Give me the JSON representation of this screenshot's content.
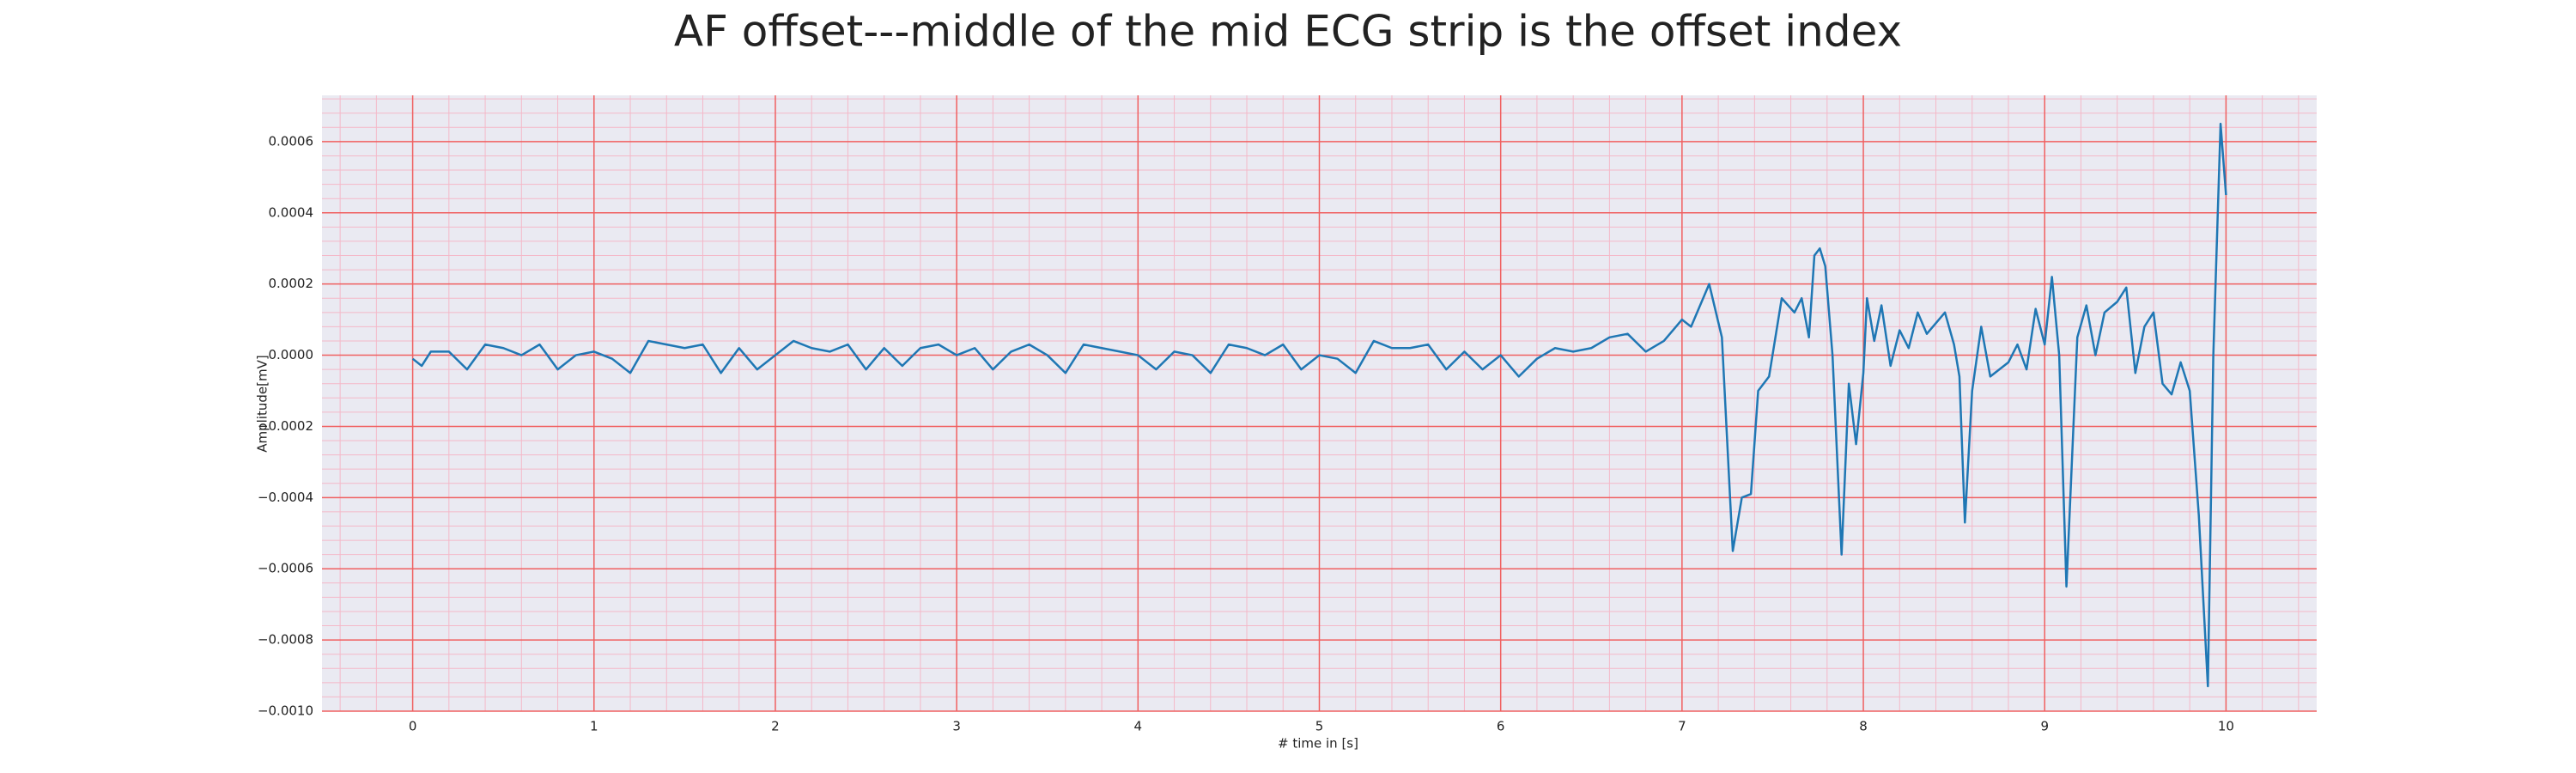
{
  "chart_data": {
    "type": "line",
    "title": "AF offset---middle of the mid ECG strip is the offset index",
    "xlabel": "# time in [s]",
    "ylabel": "Amplitude[mV]",
    "color": "#1f77b4",
    "grid": true,
    "minor_grid": true,
    "xlim": [
      -0.5,
      10.5
    ],
    "ylim": [
      -0.001,
      0.00073
    ],
    "xticks": [
      0,
      1,
      2,
      3,
      4,
      5,
      6,
      7,
      8,
      9,
      10
    ],
    "yticks": [
      {
        "value": -0.001,
        "label": "−0.0010"
      },
      {
        "value": -0.0008,
        "label": "−0.0008"
      },
      {
        "value": -0.0006,
        "label": "−0.0006"
      },
      {
        "value": -0.0004,
        "label": "−0.0004"
      },
      {
        "value": -0.0002,
        "label": "−0.0002"
      },
      {
        "value": 0,
        "label": "0.0000"
      },
      {
        "value": 0.0002,
        "label": "0.0002"
      },
      {
        "value": 0.0004,
        "label": "0.0004"
      },
      {
        "value": 0.0006,
        "label": "0.0006"
      }
    ],
    "x": [
      0,
      0.05,
      0.1,
      0.2,
      0.3,
      0.4,
      0.5,
      0.6,
      0.7,
      0.8,
      0.9,
      1.0,
      1.1,
      1.2,
      1.3,
      1.4,
      1.5,
      1.6,
      1.7,
      1.8,
      1.9,
      2.0,
      2.1,
      2.2,
      2.3,
      2.4,
      2.5,
      2.6,
      2.7,
      2.8,
      2.9,
      3.0,
      3.1,
      3.2,
      3.3,
      3.4,
      3.5,
      3.6,
      3.7,
      3.8,
      3.9,
      4.0,
      4.1,
      4.2,
      4.3,
      4.4,
      4.5,
      4.6,
      4.7,
      4.8,
      4.9,
      5.0,
      5.1,
      5.2,
      5.3,
      5.4,
      5.5,
      5.6,
      5.7,
      5.8,
      5.9,
      6.0,
      6.1,
      6.2,
      6.3,
      6.4,
      6.5,
      6.6,
      6.7,
      6.8,
      6.9,
      7.0,
      7.05,
      7.15,
      7.22,
      7.28,
      7.33,
      7.38,
      7.42,
      7.48,
      7.55,
      7.62,
      7.66,
      7.7,
      7.73,
      7.76,
      7.79,
      7.83,
      7.88,
      7.92,
      7.96,
      8.0,
      8.02,
      8.06,
      8.1,
      8.15,
      8.2,
      8.25,
      8.3,
      8.35,
      8.45,
      8.5,
      8.53,
      8.56,
      8.6,
      8.65,
      8.7,
      8.8,
      8.85,
      8.9,
      8.95,
      9.0,
      9.04,
      9.08,
      9.12,
      9.18,
      9.23,
      9.28,
      9.33,
      9.4,
      9.45,
      9.5,
      9.55,
      9.6,
      9.65,
      9.7,
      9.75,
      9.8,
      9.85,
      9.9,
      9.93,
      9.97,
      10.0
    ],
    "values": [
      -1e-05,
      -3e-05,
      1e-05,
      1e-05,
      -4e-05,
      3e-05,
      2e-05,
      0.0,
      3e-05,
      -4e-05,
      0.0,
      1e-05,
      -1e-05,
      -5e-05,
      4e-05,
      3e-05,
      2e-05,
      3e-05,
      -5e-05,
      2e-05,
      -4e-05,
      0.0,
      4e-05,
      2e-05,
      1e-05,
      3e-05,
      -4e-05,
      2e-05,
      -3e-05,
      2e-05,
      3e-05,
      0.0,
      2e-05,
      -4e-05,
      1e-05,
      3e-05,
      0.0,
      -5e-05,
      3e-05,
      2e-05,
      1e-05,
      0.0,
      -4e-05,
      1e-05,
      0.0,
      -5e-05,
      3e-05,
      2e-05,
      0.0,
      3e-05,
      -4e-05,
      0.0,
      -1e-05,
      -5e-05,
      4e-05,
      2e-05,
      2e-05,
      3e-05,
      -4e-05,
      1e-05,
      -4e-05,
      0.0,
      -6e-05,
      -1e-05,
      2e-05,
      1e-05,
      2e-05,
      5e-05,
      6e-05,
      1e-05,
      4e-05,
      0.0001,
      8e-05,
      0.0002,
      5e-05,
      -0.00055,
      -0.0004,
      -0.00039,
      -0.0001,
      -6e-05,
      0.00016,
      0.00012,
      0.00016,
      5e-05,
      0.00028,
      0.0003,
      0.00025,
      0.0,
      -0.00056,
      -8e-05,
      -0.00025,
      -5e-05,
      0.00016,
      4e-05,
      0.00014,
      -3e-05,
      7e-05,
      2e-05,
      0.00012,
      6e-05,
      0.00012,
      3e-05,
      -6e-05,
      -0.00047,
      -0.0001,
      8e-05,
      -6e-05,
      -2e-05,
      3e-05,
      -4e-05,
      0.00013,
      3e-05,
      0.00022,
      0.0,
      -0.00065,
      5e-05,
      0.00014,
      0.0,
      0.00012,
      0.00015,
      0.00019,
      -5e-05,
      8e-05,
      0.00012,
      -8e-05,
      -0.00011,
      -2e-05,
      -0.0001,
      -0.00045,
      -0.00093,
      0.0,
      0.00065,
      0.00045
    ]
  }
}
